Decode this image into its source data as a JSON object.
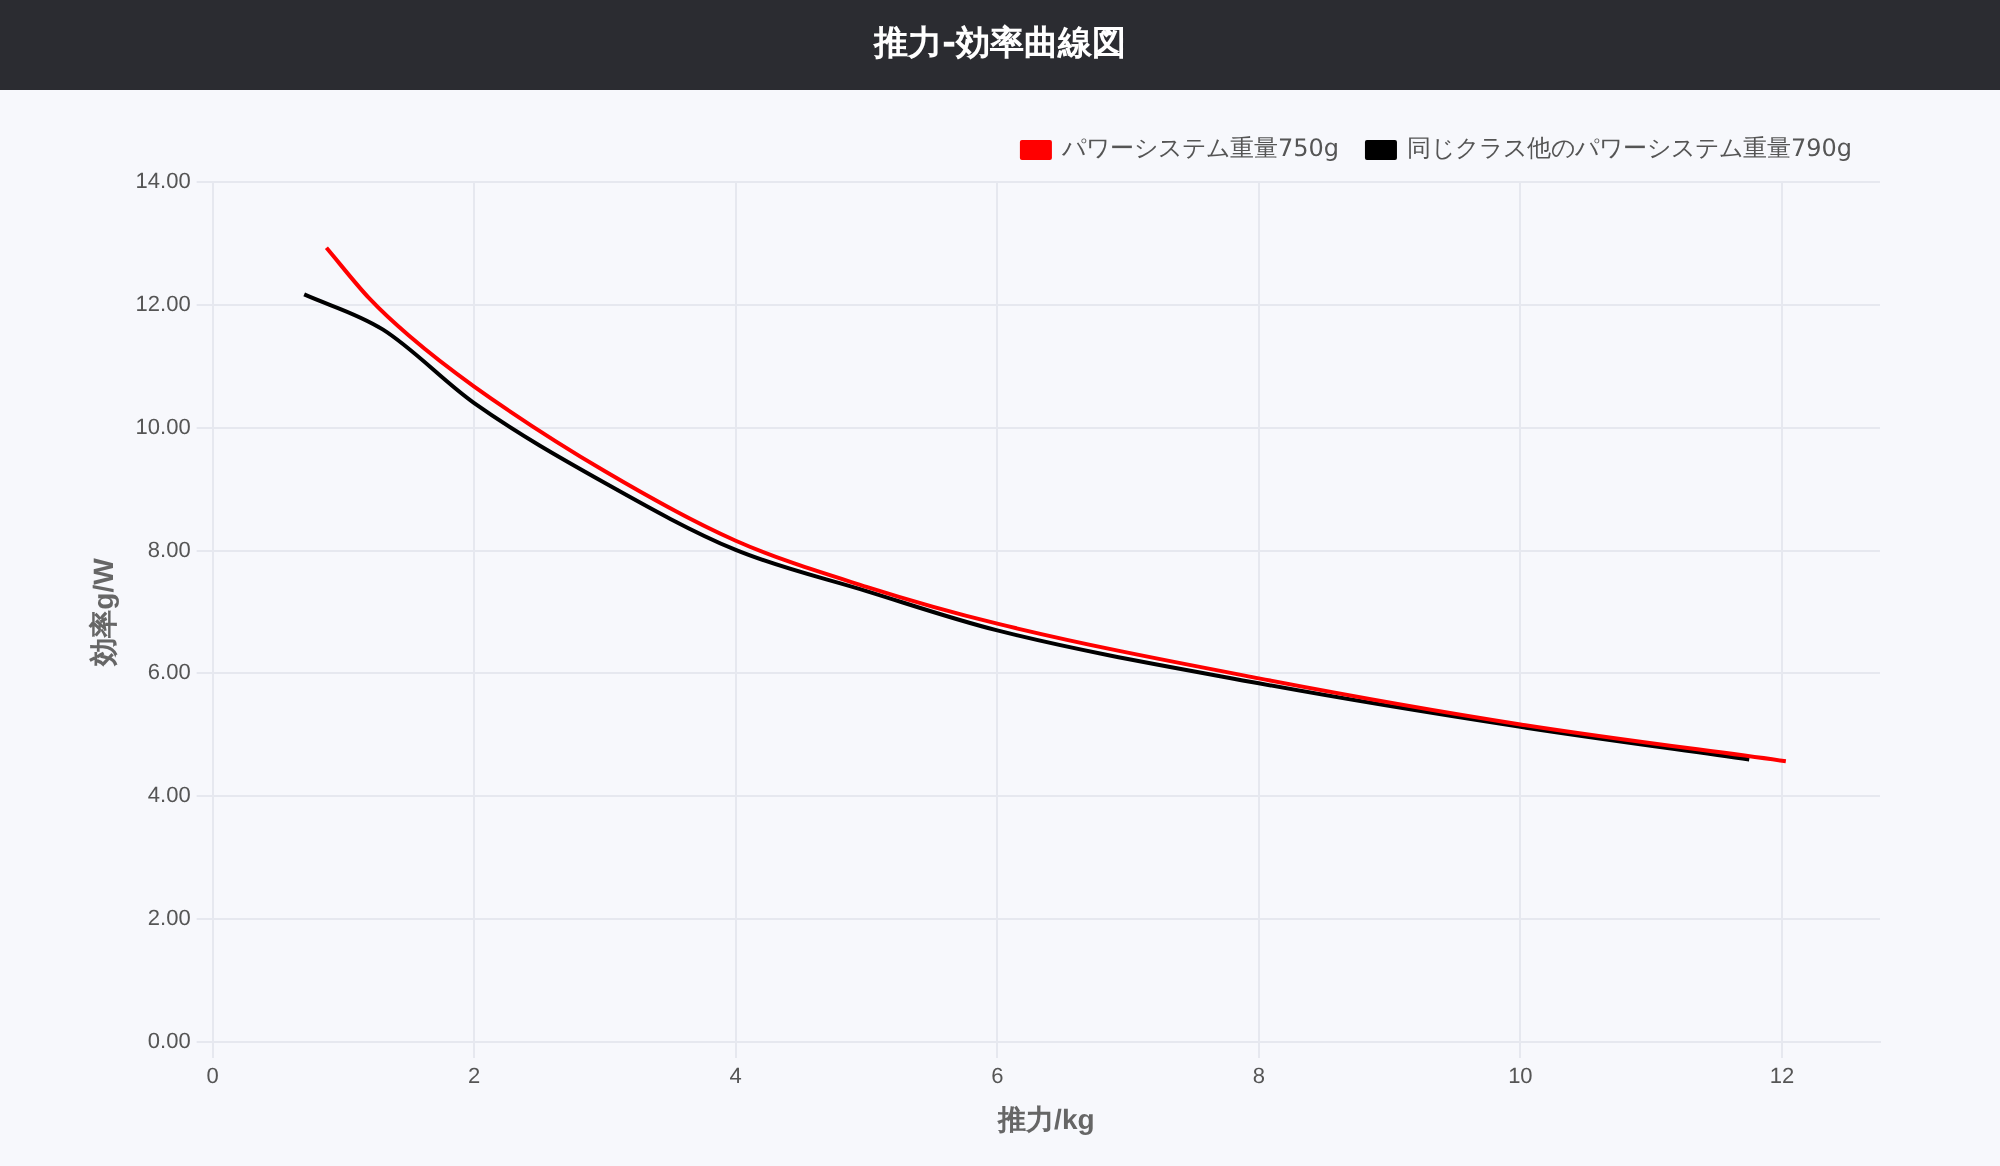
{
  "chart_data": {
    "type": "line",
    "title": "推力-効率曲線図",
    "xlabel": "推力/kg",
    "ylabel": "効率g/W",
    "xlim": [
      0,
      12.75
    ],
    "xticks": [
      0,
      2,
      4,
      6,
      8,
      10,
      12
    ],
    "ylim": [
      0,
      14
    ],
    "yticks": [
      {
        "value": 0,
        "label": "0.00"
      },
      {
        "value": 2,
        "label": "2.00"
      },
      {
        "value": 4,
        "label": "4.00"
      },
      {
        "value": 6,
        "label": "6.00"
      },
      {
        "value": 8,
        "label": "8.00"
      },
      {
        "value": 10,
        "label": "10.00"
      },
      {
        "value": 12,
        "label": "12.00"
      },
      {
        "value": 14,
        "label": "14.00"
      }
    ],
    "grid": true,
    "legend": "top right",
    "marker": "none",
    "line_style": "solid",
    "series": [
      {
        "name": "パワーシステム重量750g",
        "color": "#ff0000",
        "x": [
          0.87,
          1.2,
          1.5,
          2,
          3,
          4,
          5,
          6,
          8,
          10,
          12.03
        ],
        "values": [
          12.93,
          12.1,
          11.5,
          10.67,
          9.29,
          8.16,
          7.41,
          6.81,
          5.92,
          5.17,
          4.57
        ]
      },
      {
        "name": "同じクラス他のパワーシステム重量790g",
        "color": "#000000",
        "x": [
          0.7,
          1.3,
          2,
          3,
          4,
          5,
          6,
          8,
          10,
          11.75
        ],
        "values": [
          12.17,
          11.6,
          10.4,
          9.1,
          8.01,
          7.34,
          6.7,
          5.84,
          5.13,
          4.6
        ]
      }
    ]
  }
}
